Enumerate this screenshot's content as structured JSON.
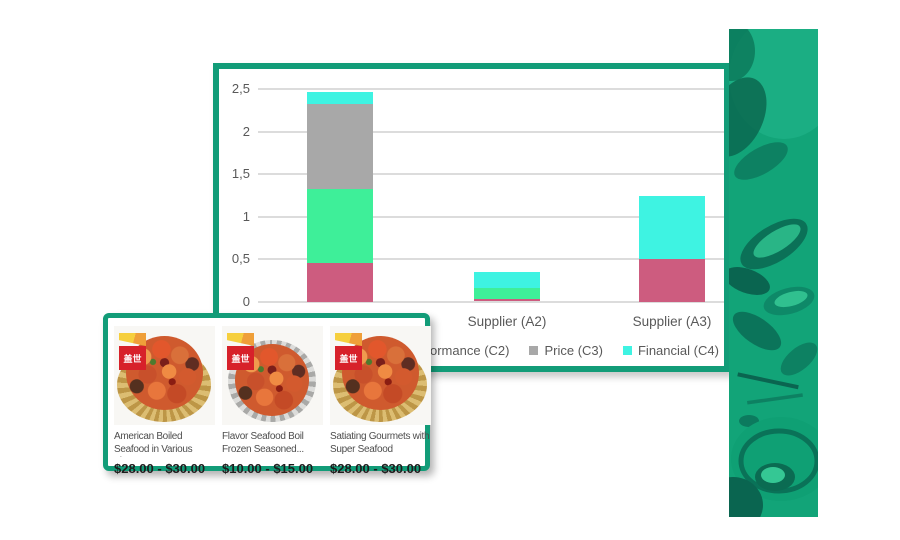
{
  "accent_color": "#129c78",
  "chart_data": {
    "type": "bar",
    "stacked": true,
    "title": "",
    "xlabel": "",
    "ylabel": "",
    "ylim": [
      0,
      2.5
    ],
    "grid": true,
    "y_ticks": [
      "2,5",
      "2",
      "1,5",
      "1",
      "0,5",
      "0"
    ],
    "categories": [
      "",
      "Supplier (A2)",
      "Supplier (A3)"
    ],
    "series": [
      {
        "name": "",
        "color": "#cd5c7f",
        "values": [
          0.45,
          0.03,
          0.5
        ]
      },
      {
        "name": "ormance (C2)",
        "color": "#3eef99",
        "values": [
          0.87,
          0.13,
          0
        ]
      },
      {
        "name": "Price (C3)",
        "color": "#a8a8a8",
        "values": [
          1.0,
          0,
          0
        ]
      },
      {
        "name": "Financial (C4)",
        "color": "#3ef3e2",
        "values": [
          0.15,
          0.19,
          0.74
        ]
      }
    ],
    "legend": {
      "position": "bottom",
      "items": [
        {
          "label": "ormance (C2)",
          "marker_color": null
        },
        {
          "label": "Price (C3)",
          "marker_color": "#a8a8a8"
        },
        {
          "label": "Financial (C4)",
          "marker_color": "#3ef3e2"
        }
      ]
    }
  },
  "products": {
    "badge_text": "盖世",
    "items": [
      {
        "title": "American Boiled Seafood in Various Flavors",
        "price": "$28.00 - $30.00",
        "pan": "gold"
      },
      {
        "title": "Flavor Seafood Boil Frozen Seasoned...",
        "price": "$10.00 - $15.00",
        "pan": "silver"
      },
      {
        "title": "Satiating Gourmets with Super Seafood",
        "price": "$28.00 - $30.00",
        "pan": "gold"
      }
    ]
  },
  "photo_strip": {
    "description": "green duotone seafood photo",
    "base_color": "#12a478"
  }
}
